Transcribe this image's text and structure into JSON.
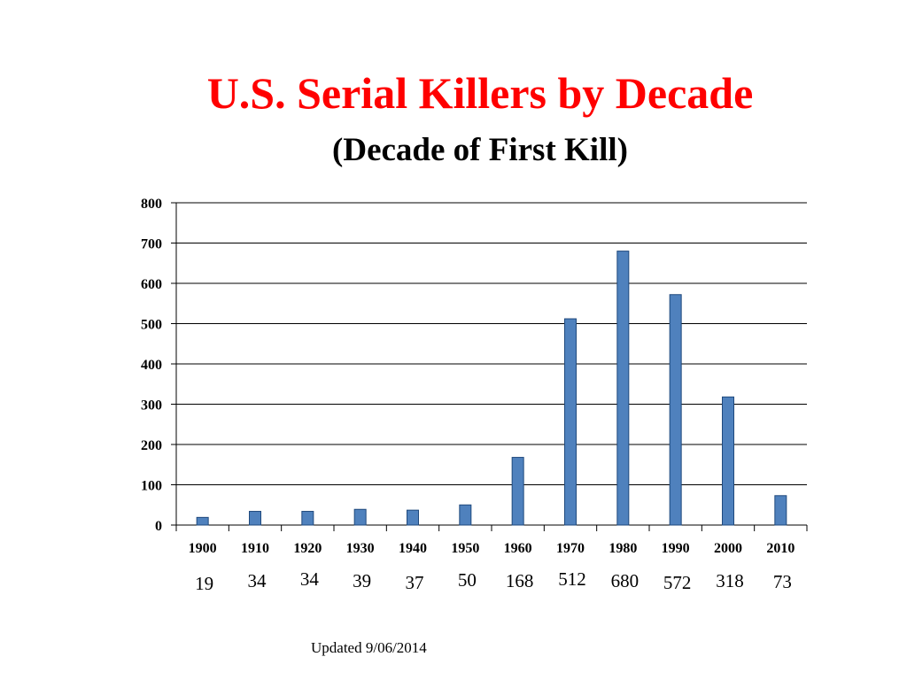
{
  "title": "U.S. Serial Killers by Decade",
  "subtitle": "(Decade of First Kill)",
  "footer": "Updated 9/06/2014",
  "colors": {
    "title": "#ff0000",
    "bar_fill": "#4f81bd",
    "bar_stroke": "#1f497d",
    "grid": "#000000"
  },
  "chart_data": {
    "type": "bar",
    "title": "U.S. Serial Killers by Decade",
    "subtitle": "(Decade of First Kill)",
    "xlabel": "",
    "ylabel": "",
    "categories": [
      "1900",
      "1910",
      "1920",
      "1930",
      "1940",
      "1950",
      "1960",
      "1970",
      "1980",
      "1990",
      "2000",
      "2010"
    ],
    "values": [
      19,
      34,
      34,
      39,
      37,
      50,
      168,
      512,
      680,
      572,
      318,
      73
    ],
    "ylim": [
      0,
      800
    ],
    "yticks": [
      0,
      100,
      200,
      300,
      400,
      500,
      600,
      700,
      800
    ],
    "grid": true,
    "legend": "none",
    "value_row_labels": [
      "19",
      "34",
      "34",
      "39",
      "37",
      "50",
      "168",
      "512",
      "680",
      "572",
      "318",
      "73"
    ]
  }
}
